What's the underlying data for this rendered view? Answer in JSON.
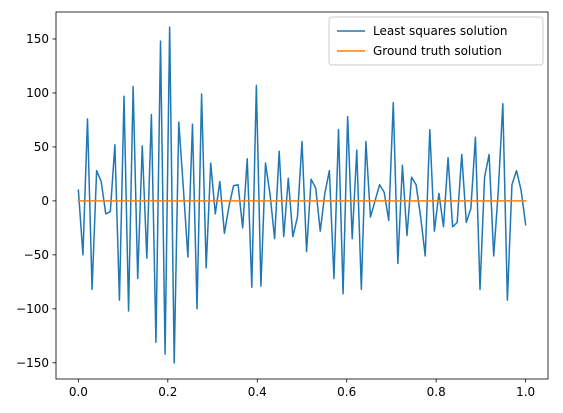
{
  "chart_data": {
    "type": "line",
    "title": "",
    "xlabel": "",
    "ylabel": "",
    "xlim": [
      -0.05,
      1.05
    ],
    "ylim": [
      -165,
      175
    ],
    "xticks": [
      0.0,
      0.2,
      0.4,
      0.6,
      0.8,
      1.0
    ],
    "xtick_labels": [
      "0.0",
      "0.2",
      "0.4",
      "0.6",
      "0.8",
      "1.0"
    ],
    "yticks": [
      -150,
      -100,
      -50,
      0,
      50,
      100,
      150
    ],
    "ytick_labels": [
      "−150",
      "−100",
      "−50",
      "0",
      "50",
      "100",
      "150"
    ],
    "grid": false,
    "legend_position": "top-right",
    "series": [
      {
        "name": "Least squares solution",
        "color": "#1f77b4",
        "x_start": 0.0,
        "x_end": 1.0,
        "values": [
          10,
          -50,
          76,
          -82,
          28,
          18,
          -12,
          -10,
          52,
          -92,
          97,
          -102,
          106,
          -72,
          51,
          -53,
          80,
          -131,
          148,
          -142,
          161,
          -150,
          73,
          12,
          -52,
          71,
          -100,
          99,
          -62,
          35,
          -12,
          18,
          -30,
          -5,
          14,
          15,
          -25,
          39,
          -80,
          107,
          -79,
          35,
          6,
          -35,
          46,
          -33,
          21,
          -33,
          -15,
          55,
          -47,
          20,
          12,
          -28,
          7,
          28,
          -72,
          66,
          -86,
          78,
          -35,
          47,
          -82,
          55,
          -15,
          0,
          15,
          8,
          -18,
          91,
          -58,
          33,
          -32,
          22,
          15,
          -15,
          -51,
          66,
          -28,
          7,
          -24,
          40,
          -24,
          -20,
          43,
          -20,
          -7,
          59,
          -82,
          22,
          43,
          -51,
          9,
          90,
          -92,
          15,
          28,
          10,
          -22
        ]
      },
      {
        "name": "Ground truth solution",
        "color": "#ff7f0e",
        "x": [
          0.0,
          1.0
        ],
        "values": [
          0,
          0
        ]
      }
    ]
  }
}
